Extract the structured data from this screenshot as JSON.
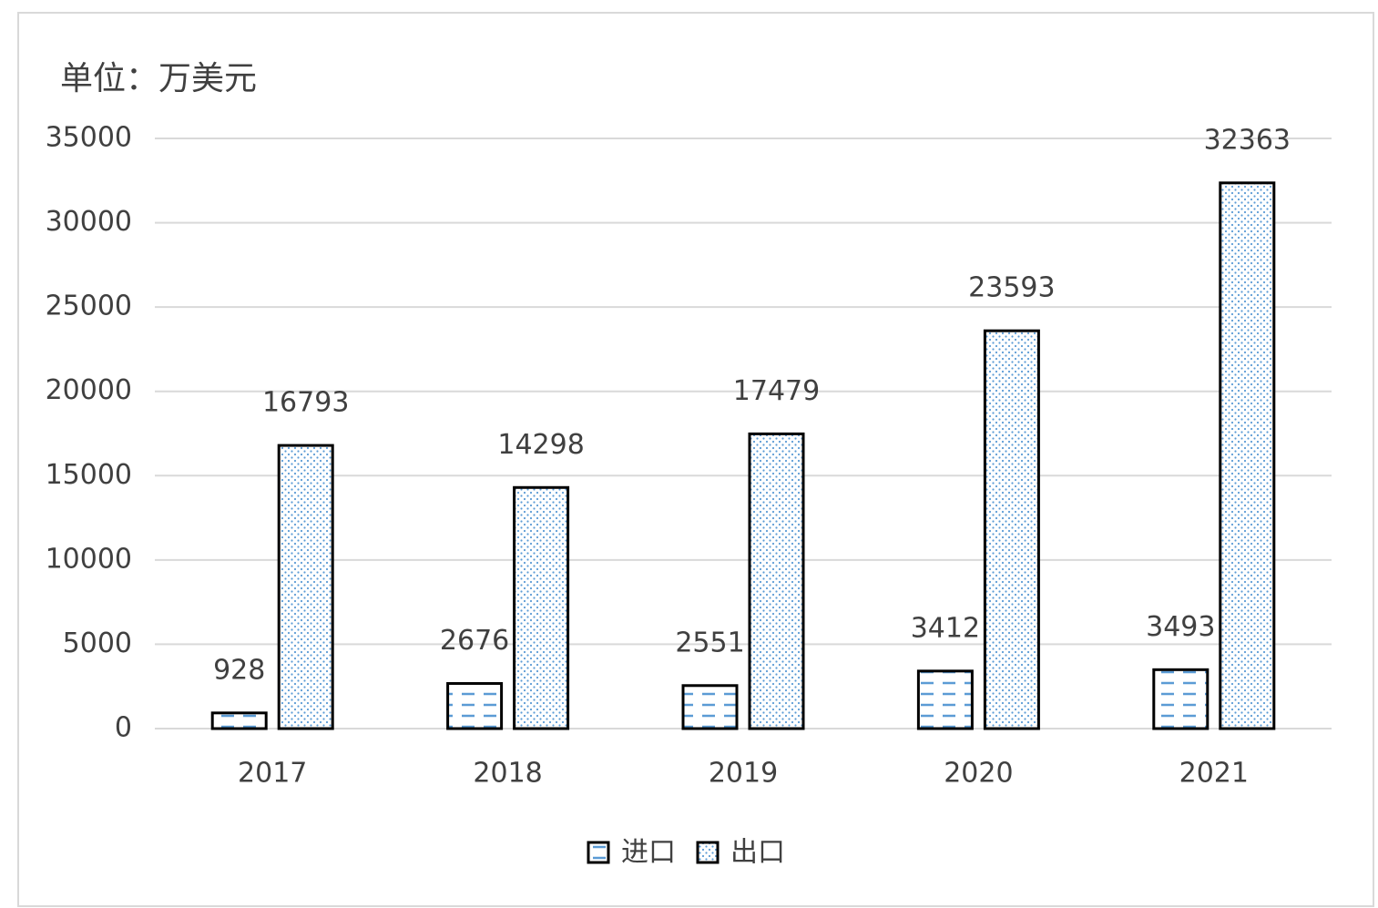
{
  "chart_data": {
    "type": "bar",
    "ylabel": "单位：万美元",
    "categories": [
      "2017",
      "2018",
      "2019",
      "2020",
      "2021"
    ],
    "series": [
      {
        "name": "进口",
        "color": "#5b9bd5",
        "pattern": "dash",
        "values": [
          928,
          2676,
          2551,
          3412,
          3493
        ]
      },
      {
        "name": "出口",
        "color": "#5b9bd5",
        "pattern": "dot",
        "values": [
          16793,
          14298,
          17479,
          23593,
          32363
        ]
      }
    ],
    "ylim": [
      0,
      35000
    ],
    "yticks": [
      0,
      5000,
      10000,
      15000,
      20000,
      25000,
      30000,
      35000
    ],
    "grid": true
  }
}
